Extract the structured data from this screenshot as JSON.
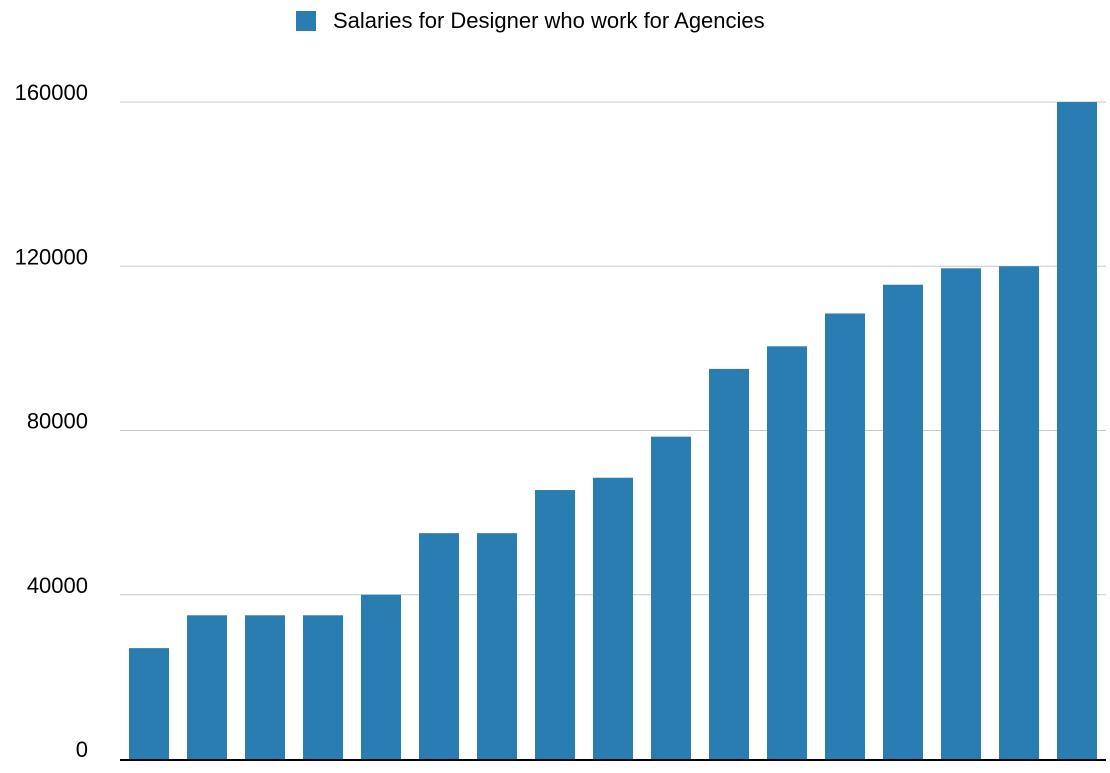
{
  "chart_data": {
    "type": "bar",
    "title": "",
    "xlabel": "",
    "ylabel": "",
    "ylim": [
      0,
      160000
    ],
    "yticks": [
      0,
      40000,
      80000,
      120000,
      160000
    ],
    "grid": true,
    "legend_position": "top-center",
    "series": [
      {
        "name": "Salaries for Designer who work for Agencies",
        "color": "#2a7db0",
        "values": [
          27000,
          35000,
          35000,
          35000,
          40000,
          55000,
          55000,
          65500,
          68500,
          78500,
          95000,
          100500,
          108500,
          115500,
          119500,
          120000,
          160000
        ]
      }
    ]
  }
}
